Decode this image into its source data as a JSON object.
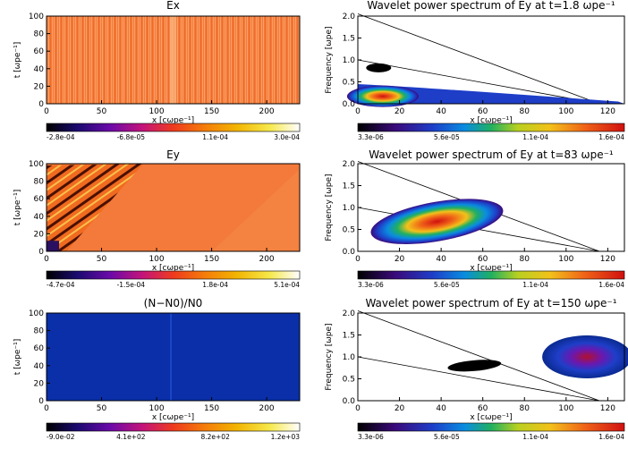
{
  "figure": {
    "layout": "3 rows x 2 columns: space-time field maps (left) and wavelet power spectra (right)"
  },
  "chart_data": [
    {
      "id": "ex",
      "type": "heatmap",
      "title": "Ex",
      "xlabel": "x [cωpe⁻¹]",
      "ylabel": "t [ωpe⁻¹]",
      "xlim": [
        0,
        230
      ],
      "ylim": [
        0,
        100
      ],
      "xticks": [
        "0",
        "50",
        "100",
        "150",
        "200"
      ],
      "yticks": [
        "0",
        "20",
        "40",
        "60",
        "80",
        "100"
      ],
      "colorbar": {
        "ticks": [
          "-2.8e-04",
          "-6.8e-05",
          "1.1e-04",
          "3.0e-04"
        ]
      }
    },
    {
      "id": "ws1",
      "type": "heatmap",
      "title": "Wavelet power spectrum of Ey at t=1.8 ωpe⁻¹",
      "xlabel": "x [cωpe⁻¹]",
      "ylabel": "Frequency [ωpe]",
      "xlim": [
        0,
        128
      ],
      "ylim": [
        0,
        2
      ],
      "xticks": [
        "0",
        "20",
        "40",
        "60",
        "80",
        "100",
        "120"
      ],
      "yticks": [
        "0.0",
        "0.5",
        "1.0",
        "1.5",
        "2.0"
      ],
      "colorbar": {
        "ticks": [
          "3.3e-06",
          "5.6e-05",
          "1.1e-04",
          "1.6e-04"
        ]
      }
    },
    {
      "id": "ey",
      "type": "heatmap",
      "title": "Ey",
      "xlabel": "x [cωpe⁻¹]",
      "ylabel": "t [ωpe⁻¹]",
      "xlim": [
        0,
        230
      ],
      "ylim": [
        0,
        100
      ],
      "xticks": [
        "0",
        "50",
        "100",
        "150",
        "200"
      ],
      "yticks": [
        "0",
        "20",
        "40",
        "60",
        "80",
        "100"
      ],
      "colorbar": {
        "ticks": [
          "-4.7e-04",
          "-1.5e-04",
          "1.8e-04",
          "5.1e-04"
        ]
      }
    },
    {
      "id": "ws2",
      "type": "heatmap",
      "title": "Wavelet power spectrum of Ey at t=83 ωpe⁻¹",
      "xlabel": "x [cωpe⁻¹]",
      "ylabel": "Frequency [ωpe]",
      "xlim": [
        0,
        128
      ],
      "ylim": [
        0,
        2
      ],
      "xticks": [
        "0",
        "20",
        "40",
        "60",
        "80",
        "100",
        "120"
      ],
      "yticks": [
        "0.0",
        "0.5",
        "1.0",
        "1.5",
        "2.0"
      ],
      "colorbar": {
        "ticks": [
          "3.3e-06",
          "5.6e-05",
          "1.1e-04",
          "1.6e-04"
        ]
      }
    },
    {
      "id": "dn",
      "type": "heatmap",
      "title": "(N−N0)/N0",
      "xlabel": "x [cωpe⁻¹]",
      "ylabel": "t [ωpe⁻¹]",
      "xlim": [
        0,
        230
      ],
      "ylim": [
        0,
        100
      ],
      "xticks": [
        "0",
        "50",
        "100",
        "150",
        "200"
      ],
      "yticks": [
        "0",
        "20",
        "40",
        "60",
        "80",
        "100"
      ],
      "colorbar": {
        "ticks": [
          "-9.0e-02",
          "4.1e+02",
          "8.2e+02",
          "1.2e+03"
        ]
      }
    },
    {
      "id": "ws3",
      "type": "heatmap",
      "title": "Wavelet power spectrum of Ey at t=150 ωpe⁻¹",
      "xlabel": "x [cωpe⁻¹]",
      "ylabel": "Frequency [ωpe]",
      "xlim": [
        0,
        128
      ],
      "ylim": [
        0,
        2
      ],
      "xticks": [
        "0",
        "20",
        "40",
        "60",
        "80",
        "100",
        "120"
      ],
      "yticks": [
        "0.0",
        "0.5",
        "1.0",
        "1.5",
        "2.0"
      ],
      "colorbar": {
        "ticks": [
          "3.3e-06",
          "5.6e-05",
          "1.1e-04",
          "1.6e-04"
        ]
      }
    }
  ]
}
